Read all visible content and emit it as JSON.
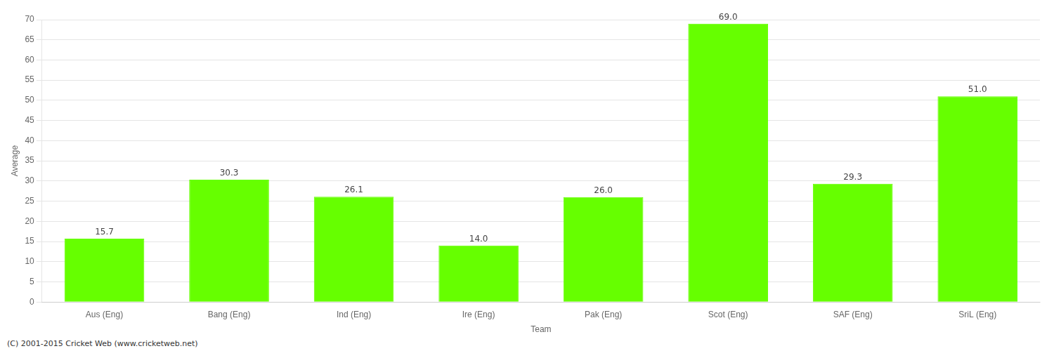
{
  "chart_data": {
    "type": "bar",
    "categories": [
      "Aus (Eng)",
      "Bang (Eng)",
      "Ind (Eng)",
      "Ire (Eng)",
      "Pak (Eng)",
      "Scot (Eng)",
      "SAF (Eng)",
      "SriL (Eng)"
    ],
    "values": [
      15.7,
      30.3,
      26.1,
      14.0,
      26.0,
      69.0,
      29.3,
      51.0
    ],
    "value_labels": [
      "15.7",
      "30.3",
      "26.1",
      "14.0",
      "26.0",
      "69.0",
      "29.3",
      "51.0"
    ],
    "data_labels": true,
    "color": "#66ff00",
    "xlabel": "Team",
    "ylabel": "Average",
    "ylim": [
      0,
      70
    ],
    "yticks": [
      0,
      5,
      10,
      15,
      20,
      25,
      30,
      35,
      40,
      45,
      50,
      55,
      60,
      65,
      70
    ],
    "grid": true,
    "annotations": [
      "(C) 2001-2015 Cricket Web (www.cricketweb.net)"
    ]
  }
}
